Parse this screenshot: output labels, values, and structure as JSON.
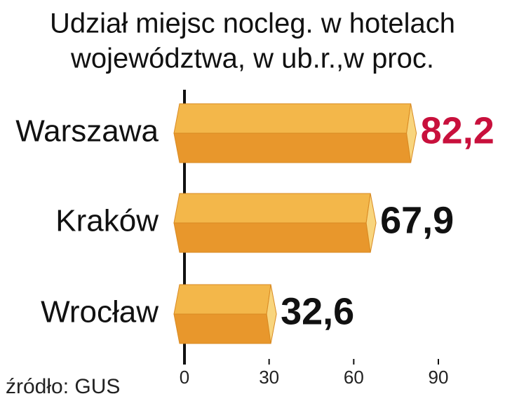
{
  "chart_data": {
    "type": "hbar3d",
    "title": [
      "Udział miejsc nocleg. w hotelach",
      "województwa, w ub.r.,w proc."
    ],
    "categories": [
      "Warszawa",
      "Kraków",
      "Wrocław"
    ],
    "values": [
      82.2,
      67.9,
      32.6
    ],
    "value_labels": [
      "82,2",
      "67,9",
      "32,6"
    ],
    "label_colors": [
      "#c8103c",
      "#111111",
      "#111111"
    ],
    "color_top": "#f3b74a",
    "color_bottom": "#e8972c",
    "color_cap": "#f8d57e",
    "xlim": [
      0,
      90
    ],
    "xticks": [
      0,
      30,
      60,
      90
    ],
    "source": "źródło: GUS"
  }
}
